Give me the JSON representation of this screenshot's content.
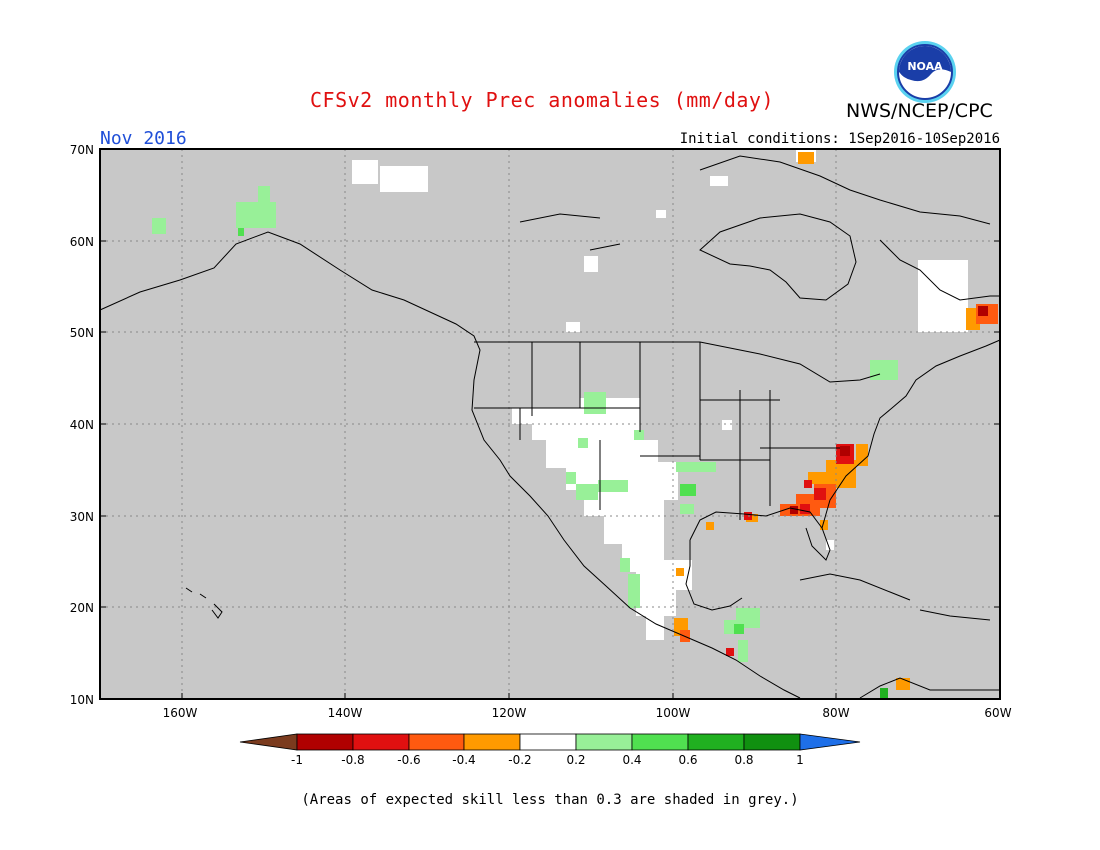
{
  "header": {
    "title": "CFSv2 monthly Prec anomalies (mm/day)",
    "agency": "NWS/NCEP/CPC",
    "logo_text": "NOAA",
    "month": "Nov 2016",
    "initial_conditions": "Initial conditions: 1Sep2016-10Sep2016"
  },
  "map": {
    "lat_labels": [
      "70N",
      "60N",
      "50N",
      "40N",
      "30N",
      "20N",
      "10N"
    ],
    "lon_labels": [
      "160W",
      "140W",
      "120W",
      "100W",
      "80W",
      "60W"
    ],
    "colors": {
      "skill_grey": "#c8c8c8",
      "frame": "#000000",
      "grid": "#888888"
    },
    "anomaly_regions": [
      {
        "name": "southeast-us-dry",
        "category": "-0.6 to -0.4"
      },
      {
        "name": "carolinas-dry",
        "category": "-1 to -0.8"
      },
      {
        "name": "southwest-us-near-normal",
        "category": "-0.2 to 0.2"
      },
      {
        "name": "great-lakes-wet",
        "category": "0.2 to 0.4"
      }
    ]
  },
  "colorbar": {
    "labels": [
      "-1",
      "-0.8",
      "-0.6",
      "-0.4",
      "-0.2",
      "0.2",
      "0.4",
      "0.6",
      "0.8",
      "1"
    ],
    "colors": [
      "#7b3b1e",
      "#b00000",
      "#e01010",
      "#ff5a10",
      "#ff9a00",
      "#ffffff",
      "#98f098",
      "#50e050",
      "#20b020",
      "#109010",
      "#1e6fe8"
    ]
  },
  "footnote": "(Areas of expected skill less than 0.3 are shaded in grey.)"
}
